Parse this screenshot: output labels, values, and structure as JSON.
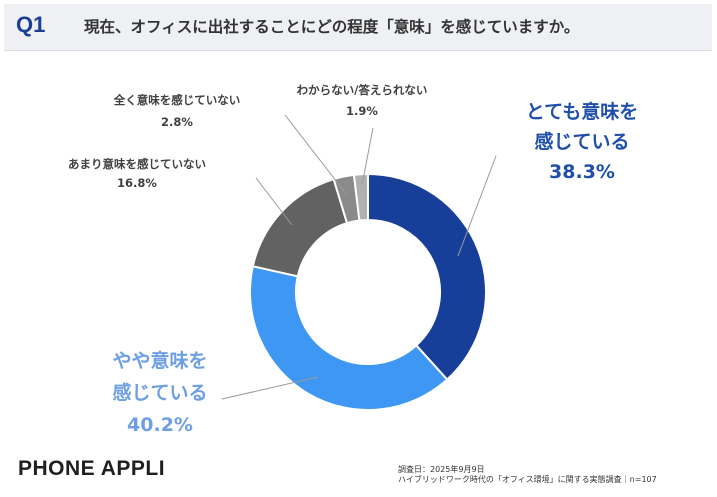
{
  "header": {
    "q_label": "Q1",
    "title": "現在、オフィスに出社することにどの程度「意味」を感じていますか。"
  },
  "chart_data": {
    "type": "pie",
    "donut": true,
    "start_angle_deg": 0,
    "direction": "clockwise",
    "slices": [
      {
        "label_lines": [
          "とても意味を",
          "感じている"
        ],
        "value": 38.3,
        "value_text": "38.3%",
        "color": "#173f99",
        "label_color": "#1f4fa8"
      },
      {
        "label_lines": [
          "やや意味を",
          "感じている"
        ],
        "value": 40.2,
        "value_text": "40.2%",
        "color": "#3d97f3",
        "label_color": "#6d9fe2"
      },
      {
        "label_lines": [
          "あまり意味を感じていない"
        ],
        "value": 16.8,
        "value_text": "16.8%",
        "color": "#626262",
        "label_color": "#404040"
      },
      {
        "label_lines": [
          "全く意味を感じていない"
        ],
        "value": 2.8,
        "value_text": "2.8%",
        "color": "#8a8a8a",
        "label_color": "#404040"
      },
      {
        "label_lines": [
          "わからない/答えられない"
        ],
        "value": 1.9,
        "value_text": "1.9%",
        "color": "#b0b0b0",
        "label_color": "#404040"
      }
    ]
  },
  "footer": {
    "brand": "PHONE APPLI",
    "source_date": "調査日：2025年9月9日",
    "source_text": "ハイブリッドワーク時代の「オフィス環境」に関する実態調査｜n=107"
  }
}
